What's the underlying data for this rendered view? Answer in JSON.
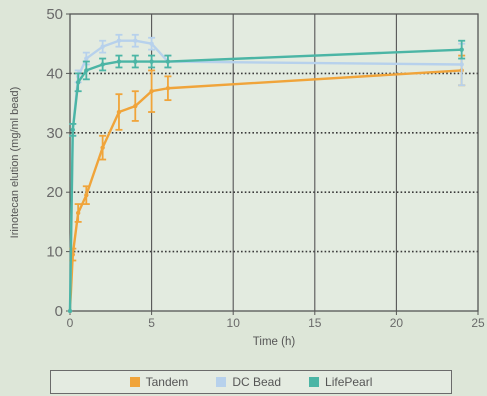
{
  "chart_data": {
    "type": "line",
    "xlabel": "Time (h)",
    "ylabel": "Irinotecan elution (mg/ml bead)",
    "xlim": [
      0,
      25
    ],
    "ylim": [
      0,
      50
    ],
    "xticks": [
      "0",
      "5",
      "10",
      "15",
      "20",
      "25"
    ],
    "yticks": [
      "0",
      "10",
      "20",
      "30",
      "40",
      "50"
    ],
    "grid": true,
    "legend_position": "bottom",
    "series": [
      {
        "name": "Tandem",
        "color": "#f0a43a",
        "points": [
          {
            "x": 0,
            "y": 0,
            "err": 0
          },
          {
            "x": 0.17,
            "y": 9.5,
            "err": 1.0
          },
          {
            "x": 0.5,
            "y": 16.5,
            "err": 1.5
          },
          {
            "x": 1,
            "y": 19.5,
            "err": 1.5
          },
          {
            "x": 2,
            "y": 27.5,
            "err": 2.0
          },
          {
            "x": 3,
            "y": 33.5,
            "err": 3.0
          },
          {
            "x": 4,
            "y": 34.5,
            "err": 2.5
          },
          {
            "x": 5,
            "y": 37.0,
            "err": 3.5
          },
          {
            "x": 6,
            "y": 37.5,
            "err": 2.0
          },
          {
            "x": 24,
            "y": 40.5,
            "err": 2.5
          }
        ]
      },
      {
        "name": "DC Bead",
        "color": "#b7d1ec",
        "points": [
          {
            "x": 0,
            "y": 0,
            "err": 0
          },
          {
            "x": 0.17,
            "y": 30.5,
            "err": 1.0
          },
          {
            "x": 0.5,
            "y": 39.5,
            "err": 1.0
          },
          {
            "x": 1,
            "y": 42.5,
            "err": 1.0
          },
          {
            "x": 2,
            "y": 44.5,
            "err": 1.0
          },
          {
            "x": 3,
            "y": 45.5,
            "err": 1.0
          },
          {
            "x": 4,
            "y": 45.5,
            "err": 1.0
          },
          {
            "x": 5,
            "y": 45.0,
            "err": 1.0
          },
          {
            "x": 6,
            "y": 42.0,
            "err": 1.0
          },
          {
            "x": 24,
            "y": 41.5,
            "err": 3.5
          }
        ]
      },
      {
        "name": "LifePearl",
        "color": "#4bb5a5",
        "points": [
          {
            "x": 0,
            "y": 0,
            "err": 0
          },
          {
            "x": 0.17,
            "y": 30.5,
            "err": 1.0
          },
          {
            "x": 0.5,
            "y": 38.5,
            "err": 1.5
          },
          {
            "x": 1,
            "y": 40.5,
            "err": 1.5
          },
          {
            "x": 2,
            "y": 41.5,
            "err": 1.0
          },
          {
            "x": 3,
            "y": 42.0,
            "err": 1.0
          },
          {
            "x": 4,
            "y": 42.0,
            "err": 1.0
          },
          {
            "x": 5,
            "y": 42.0,
            "err": 1.0
          },
          {
            "x": 6,
            "y": 42.0,
            "err": 1.0
          },
          {
            "x": 24,
            "y": 44.0,
            "err": 1.5
          }
        ]
      }
    ]
  }
}
